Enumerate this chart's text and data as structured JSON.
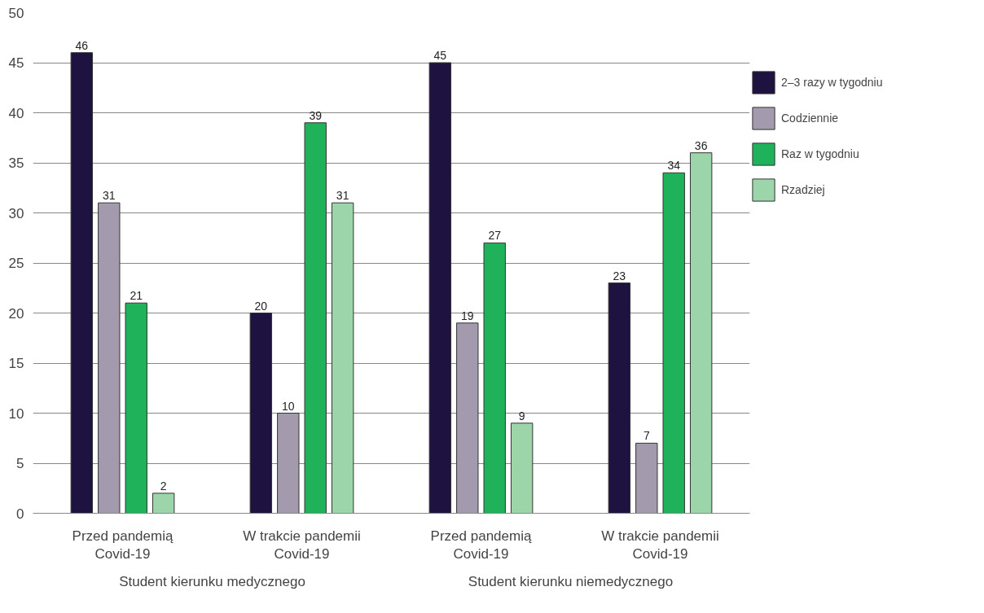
{
  "chart_data": {
    "type": "bar",
    "categories": [
      "Przed pandemią\nCovid-19",
      "W trakcie pandemii\nCovid-19",
      "Przed pandemią\nCovid-19",
      "W trakcie pandemii\nCovid-19"
    ],
    "series": [
      {
        "name": "2–3 razy w tygodniu",
        "color": "#1e1240",
        "values": [
          46,
          20,
          45,
          23
        ]
      },
      {
        "name": "Codziennie",
        "color": "#a39aad",
        "values": [
          31,
          10,
          19,
          7
        ]
      },
      {
        "name": "Raz w tygodniu",
        "color": "#1fb25a",
        "values": [
          21,
          39,
          27,
          34
        ]
      },
      {
        "name": "Rzadziej",
        "color": "#9dd5aa",
        "values": [
          2,
          31,
          9,
          36
        ]
      }
    ],
    "annotations": [
      "Student kierunku medycznego",
      "Student kierunku niemedycznego"
    ],
    "ylim": [
      0,
      50
    ],
    "yticks": [
      0,
      5,
      10,
      15,
      20,
      25,
      30,
      35,
      40,
      45,
      50
    ],
    "grid": "y",
    "legend": "right",
    "data_labels": true
  }
}
